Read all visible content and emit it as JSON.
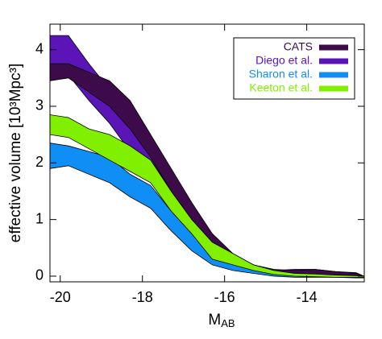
{
  "chart_data": {
    "type": "band",
    "xlabel": {
      "main": "M",
      "sub": "AB"
    },
    "ylabel": "effective volume [10³Mpc³]",
    "x": [
      -20.25,
      -19.8,
      -19.3,
      -18.8,
      -18.3,
      -17.8,
      -17.3,
      -16.8,
      -16.3,
      -15.8,
      -15.3,
      -14.8,
      -14.3,
      -13.8,
      -13.3,
      -12.8,
      -12.6
    ],
    "series": [
      {
        "name": "Diego et al.",
        "color": "#5a14b8",
        "values": [
          4.25,
          4.25,
          3.75,
          3.3,
          2.65,
          2.2,
          1.7,
          1.15,
          0.7,
          0.4,
          0.2,
          0.1,
          0.12,
          0.12,
          0.08,
          0.06,
          0.0
        ],
        "lower": [
          3.65,
          3.55,
          3.1,
          2.7,
          2.2,
          1.9,
          1.45,
          1.0,
          0.55,
          0.3,
          0.15,
          0.07,
          0.05,
          0.05,
          0.03,
          0.02,
          -0.03
        ]
      },
      {
        "name": "CATS",
        "color": "#3d0a4a",
        "values": [
          3.75,
          3.75,
          3.6,
          3.45,
          3.1,
          2.5,
          1.9,
          1.3,
          0.75,
          0.4,
          0.2,
          0.12,
          0.1,
          0.12,
          0.08,
          0.05,
          0.0
        ],
        "lower": [
          3.45,
          3.5,
          3.25,
          3.0,
          2.6,
          2.1,
          1.5,
          1.0,
          0.55,
          0.3,
          0.15,
          0.05,
          0.02,
          0.03,
          0.02,
          0.0,
          0.0
        ]
      },
      {
        "name": "Sharon et al.",
        "color": "#0f8ff5",
        "values": [
          2.35,
          2.3,
          2.2,
          2.1,
          1.8,
          1.6,
          1.15,
          0.75,
          0.38,
          0.25,
          0.12,
          0.05,
          0.02,
          0.02,
          0.01,
          0.0,
          0.0
        ],
        "lower": [
          1.9,
          1.95,
          1.8,
          1.65,
          1.4,
          1.2,
          0.8,
          0.45,
          0.2,
          0.1,
          0.05,
          0.0,
          -0.02,
          -0.02,
          -0.02,
          -0.03,
          -0.03
        ]
      },
      {
        "name": "Keeton et al.",
        "color": "#80f000",
        "values": [
          2.85,
          2.8,
          2.6,
          2.5,
          2.3,
          2.05,
          1.5,
          1.0,
          0.6,
          0.4,
          0.2,
          0.1,
          0.05,
          0.04,
          0.02,
          0.01,
          0.0
        ],
        "lower": [
          2.5,
          2.45,
          2.25,
          2.05,
          1.85,
          1.65,
          1.15,
          0.75,
          0.3,
          0.2,
          0.1,
          0.03,
          0.0,
          -0.01,
          -0.02,
          -0.02,
          -0.02
        ]
      }
    ],
    "legend_order": [
      1,
      0,
      2,
      3
    ],
    "xlim": [
      -20.25,
      -12.6
    ],
    "xticks": [
      -20,
      -18,
      -16,
      -14
    ],
    "ylim": [
      -0.1,
      4.45
    ],
    "yticks": [
      0,
      1,
      2,
      3,
      4
    ],
    "legend": "upper right"
  }
}
